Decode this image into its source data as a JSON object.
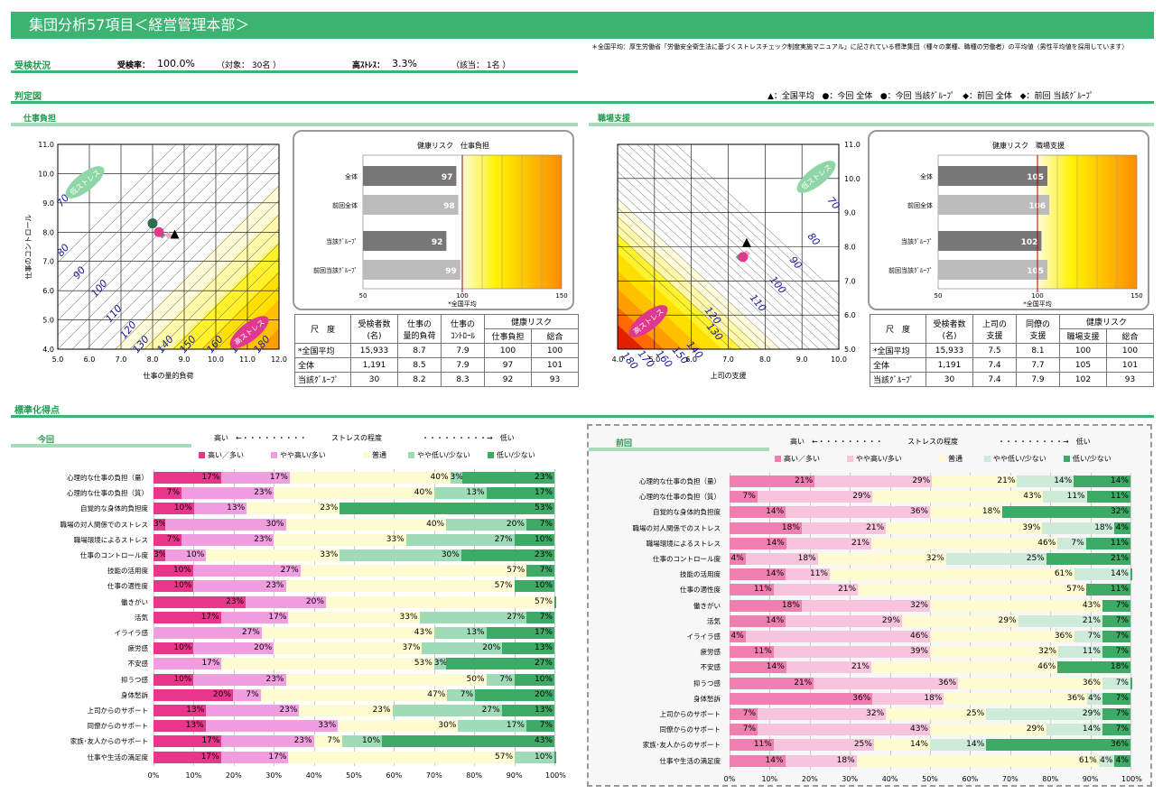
{
  "title": "集団分析57項目＜経営管理本部＞",
  "note": "＊全国平均：厚生労働省「労働安全衛生法に基づくストレスチェック制度実施マニュアル」に記されている標準集団（種々の業種、職種の労働者）の平均値（男性平均値を採用しています）",
  "status": {
    "heading": "受検状況",
    "rate_label": "受検率：",
    "rate": "100.0%",
    "target": "（対象： 30名 ）",
    "high_label": "高ｽﾄﾚｽ：",
    "high": "3.3%",
    "applicable": "（該当： 1名 ）"
  },
  "judgment": {
    "heading": "判定図",
    "legend": [
      "▲：全国平均",
      "●：今回 全体",
      "●：今回 当該ｸﾞﾙｰﾌﾟ",
      "◆：前回 全体",
      "◆：前回 当該ｸﾞﾙｰﾌﾟ"
    ],
    "colors": {
      "national": "#000000",
      "cur_all": "#e0388c",
      "cur_grp": "#2e6b4f",
      "prev_all": "#f4a6cf",
      "prev_grp": "#5aa86f"
    }
  },
  "left": {
    "section": "仕事負担",
    "xlabel": "仕事の量的負荷",
    "ylabel": "仕事のコントロール",
    "xticks": [
      "5.0",
      "6.0",
      "7.0",
      "8.0",
      "9.0",
      "10.0",
      "11.0",
      "12.0"
    ],
    "yticks": [
      "4.0",
      "5.0",
      "6.0",
      "7.0",
      "8.0",
      "9.0",
      "10.0",
      "11.0"
    ],
    "low": "低ストレス",
    "high": "高ストレス",
    "contours": [
      "70",
      "80",
      "90",
      "100",
      "110",
      "120",
      "130",
      "140",
      "150",
      "160",
      "170",
      "180"
    ],
    "risk_title": "健康リスク　仕事負担",
    "bars": [
      {
        "label": "全体",
        "value": "97"
      },
      {
        "label": "前回全体",
        "value": "98"
      },
      {
        "label": "当該ｸﾞﾙｰﾌﾟ",
        "value": "92"
      },
      {
        "label": "前回当該ｸﾞﾙｰﾌﾟ",
        "value": "99"
      }
    ],
    "scale": [
      "50",
      "100",
      "150"
    ],
    "nat_label": "*全国平均",
    "table": {
      "h1": [
        "尺　度",
        "受検者数\n(名)",
        "仕事の\n量的負荷",
        "仕事の\nｺﾝﾄﾛｰﾙ",
        "健康リスク"
      ],
      "h2": [
        "仕事負担",
        "総合"
      ],
      "rows": [
        [
          "*全国平均",
          "15,933",
          "8.7",
          "7.9",
          "100",
          "100"
        ],
        [
          "全体",
          "1,191",
          "8.5",
          "7.9",
          "97",
          "101"
        ],
        [
          "当該ｸﾞﾙｰﾌﾟ",
          "30",
          "8.2",
          "8.3",
          "92",
          "93"
        ]
      ]
    }
  },
  "right": {
    "section": "職場支援",
    "xlabel": "上司の支援",
    "ylabel": "同僚の支援",
    "xticks": [
      "4.0",
      "5.0",
      "6.0",
      "7.0",
      "8.0",
      "9.0",
      "10.0"
    ],
    "yticks": [
      "5.0",
      "6.0",
      "7.0",
      "8.0",
      "9.0",
      "10.0",
      "11.0"
    ],
    "low": "低ストレス",
    "high": "高ストレス",
    "contours": [
      "70",
      "80",
      "90",
      "100",
      "110",
      "120",
      "130",
      "140",
      "150",
      "160",
      "170",
      "180"
    ],
    "risk_title": "健康リスク　職場支援",
    "bars": [
      {
        "label": "全体",
        "value": "105"
      },
      {
        "label": "前回全体",
        "value": "106"
      },
      {
        "label": "当該ｸﾞﾙｰﾌﾟ",
        "value": "102"
      },
      {
        "label": "前回当該ｸﾞﾙｰﾌﾟ",
        "value": "105"
      }
    ],
    "scale": [
      "50",
      "100",
      "150"
    ],
    "nat_label": "*全国平均",
    "table": {
      "h1": [
        "尺　度",
        "受検者数\n(名)",
        "上司の\n支援",
        "同僚の\n支援",
        "健康リスク"
      ],
      "h2": [
        "職場支援",
        "総合"
      ],
      "rows": [
        [
          "*全国平均",
          "15,933",
          "7.5",
          "8.1",
          "100",
          "100"
        ],
        [
          "全体",
          "1,191",
          "7.4",
          "7.7",
          "105",
          "101"
        ],
        [
          "当該ｸﾞﾙｰﾌﾟ",
          "30",
          "7.4",
          "7.9",
          "102",
          "93"
        ]
      ]
    }
  },
  "std": {
    "heading": "標準化得点",
    "scale_hi": "高い　←・・・・・・・・・",
    "scale_mid": "ストレスの程度",
    "scale_lo": "・・・・・・・・・→　低い",
    "legend": [
      "高い／多い",
      "やや高い/多い",
      "普通",
      "やや低い/少ない",
      "低い/少ない"
    ],
    "colors_cur": [
      "#e8368a",
      "#f09ee0",
      "#fffbd0",
      "#9edbb6",
      "#3dab66"
    ],
    "colors_prev": [
      "#ef7fb0",
      "#f8c3dc",
      "#fffbd0",
      "#cdebd8",
      "#3dab66"
    ],
    "xticks": [
      "0%",
      "10%",
      "20%",
      "30%",
      "40%",
      "50%",
      "60%",
      "70%",
      "80%",
      "90%",
      "100%"
    ],
    "current_label": "今回",
    "previous_label": "前回",
    "items": [
      "心理的な仕事の負担（量）",
      "心理的な仕事の負担（質）",
      "自覚的な身体的負担度",
      "職場の対人関係でのストレス",
      "職場環境によるストレス",
      "仕事のコントロール度",
      "技能の活用度",
      "仕事の適性度",
      "働きがい",
      "活気",
      "イライラ感",
      "疲労感",
      "不安感",
      "抑うつ感",
      "身体愁訴",
      "上司からのサポート",
      "同僚からのサポート",
      "家族･友人からのサポート",
      "仕事や生活の満足度"
    ]
  },
  "chart_data": [
    {
      "type": "bar",
      "title": "今回",
      "stacked": true,
      "orientation": "horizontal",
      "series_names": [
        "高い／多い",
        "やや高い/多い",
        "普通",
        "やや低い/少ない",
        "低い/少ない"
      ],
      "values": [
        [
          17,
          17,
          40,
          3,
          23
        ],
        [
          7,
          23,
          40,
          13,
          17
        ],
        [
          10,
          13,
          23,
          0,
          53
        ],
        [
          3,
          30,
          40,
          20,
          7
        ],
        [
          7,
          23,
          33,
          27,
          10
        ],
        [
          3,
          10,
          33,
          30,
          23
        ],
        [
          10,
          27,
          57,
          0,
          7
        ],
        [
          10,
          23,
          57,
          0,
          10
        ],
        [
          23,
          20,
          57,
          0,
          0
        ],
        [
          17,
          17,
          33,
          27,
          7
        ],
        [
          0,
          27,
          43,
          13,
          17
        ],
        [
          10,
          20,
          37,
          20,
          13
        ],
        [
          0,
          17,
          53,
          3,
          27
        ],
        [
          10,
          23,
          50,
          7,
          10
        ],
        [
          20,
          7,
          47,
          7,
          20
        ],
        [
          13,
          23,
          23,
          27,
          13
        ],
        [
          13,
          33,
          30,
          17,
          7
        ],
        [
          17,
          23,
          7,
          10,
          43
        ],
        [
          17,
          17,
          57,
          10,
          0
        ]
      ]
    },
    {
      "type": "bar",
      "title": "前回",
      "stacked": true,
      "orientation": "horizontal",
      "series_names": [
        "高い／多い",
        "やや高い/多い",
        "普通",
        "やや低い/少ない",
        "低い/少ない"
      ],
      "values": [
        [
          21,
          29,
          21,
          14,
          14
        ],
        [
          7,
          29,
          43,
          11,
          11
        ],
        [
          14,
          36,
          18,
          0,
          32
        ],
        [
          18,
          21,
          39,
          18,
          4
        ],
        [
          14,
          21,
          46,
          7,
          11
        ],
        [
          4,
          18,
          32,
          25,
          21
        ],
        [
          14,
          11,
          61,
          14,
          0
        ],
        [
          11,
          21,
          57,
          0,
          11
        ],
        [
          18,
          32,
          43,
          0,
          7
        ],
        [
          14,
          29,
          29,
          21,
          7
        ],
        [
          4,
          46,
          36,
          7,
          7
        ],
        [
          11,
          39,
          32,
          11,
          7
        ],
        [
          14,
          21,
          46,
          0,
          18
        ],
        [
          21,
          36,
          36,
          7,
          0
        ],
        [
          36,
          18,
          36,
          4,
          7
        ],
        [
          7,
          32,
          25,
          29,
          7
        ],
        [
          7,
          43,
          29,
          14,
          7
        ],
        [
          11,
          25,
          14,
          14,
          36
        ],
        [
          14,
          18,
          61,
          4,
          4
        ]
      ]
    }
  ]
}
